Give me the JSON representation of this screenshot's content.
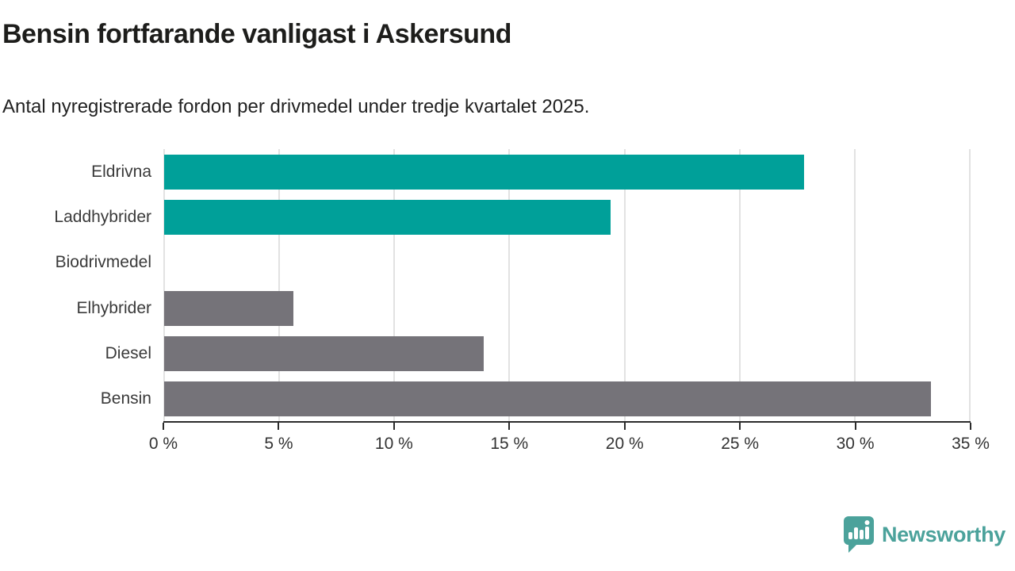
{
  "header": {
    "title": "Bensin fortfarande vanligast i Askersund",
    "subtitle": "Antal nyregistrerade fordon per drivmedel under tredje kvartalet 2025."
  },
  "chart_data": {
    "type": "bar",
    "orientation": "horizontal",
    "title": "Bensin fortfarande vanligast i Askersund",
    "subtitle": "Antal nyregistrerade fordon per drivmedel under tredje kvartalet 2025.",
    "categories": [
      "Eldrivna",
      "Laddhybrider",
      "Biodrivmedel",
      "Elhybrider",
      "Diesel",
      "Bensin"
    ],
    "values": [
      27.8,
      19.4,
      0,
      5.6,
      13.9,
      33.3
    ],
    "unit": "%",
    "xlim": [
      0,
      35
    ],
    "x_ticks": [
      0,
      5,
      10,
      15,
      20,
      25,
      30,
      35
    ],
    "x_tick_labels": [
      "0 %",
      "5 %",
      "10 %",
      "15 %",
      "20 %",
      "25 %",
      "30 %",
      "35 %"
    ],
    "grid": "vertical",
    "legend": "none",
    "color_keys": [
      "highlight",
      "highlight",
      "default",
      "default",
      "default",
      "default"
    ]
  },
  "colors": {
    "highlight": "#00a099",
    "default": "#757379",
    "gridline": "#e2e2e2",
    "axis": "#2b2b2b",
    "brand": "#4ba29b"
  },
  "footer": {
    "brand_name": "Newsworthy",
    "brand_icon": "speech-bubble-bar-chart-exclamation"
  }
}
